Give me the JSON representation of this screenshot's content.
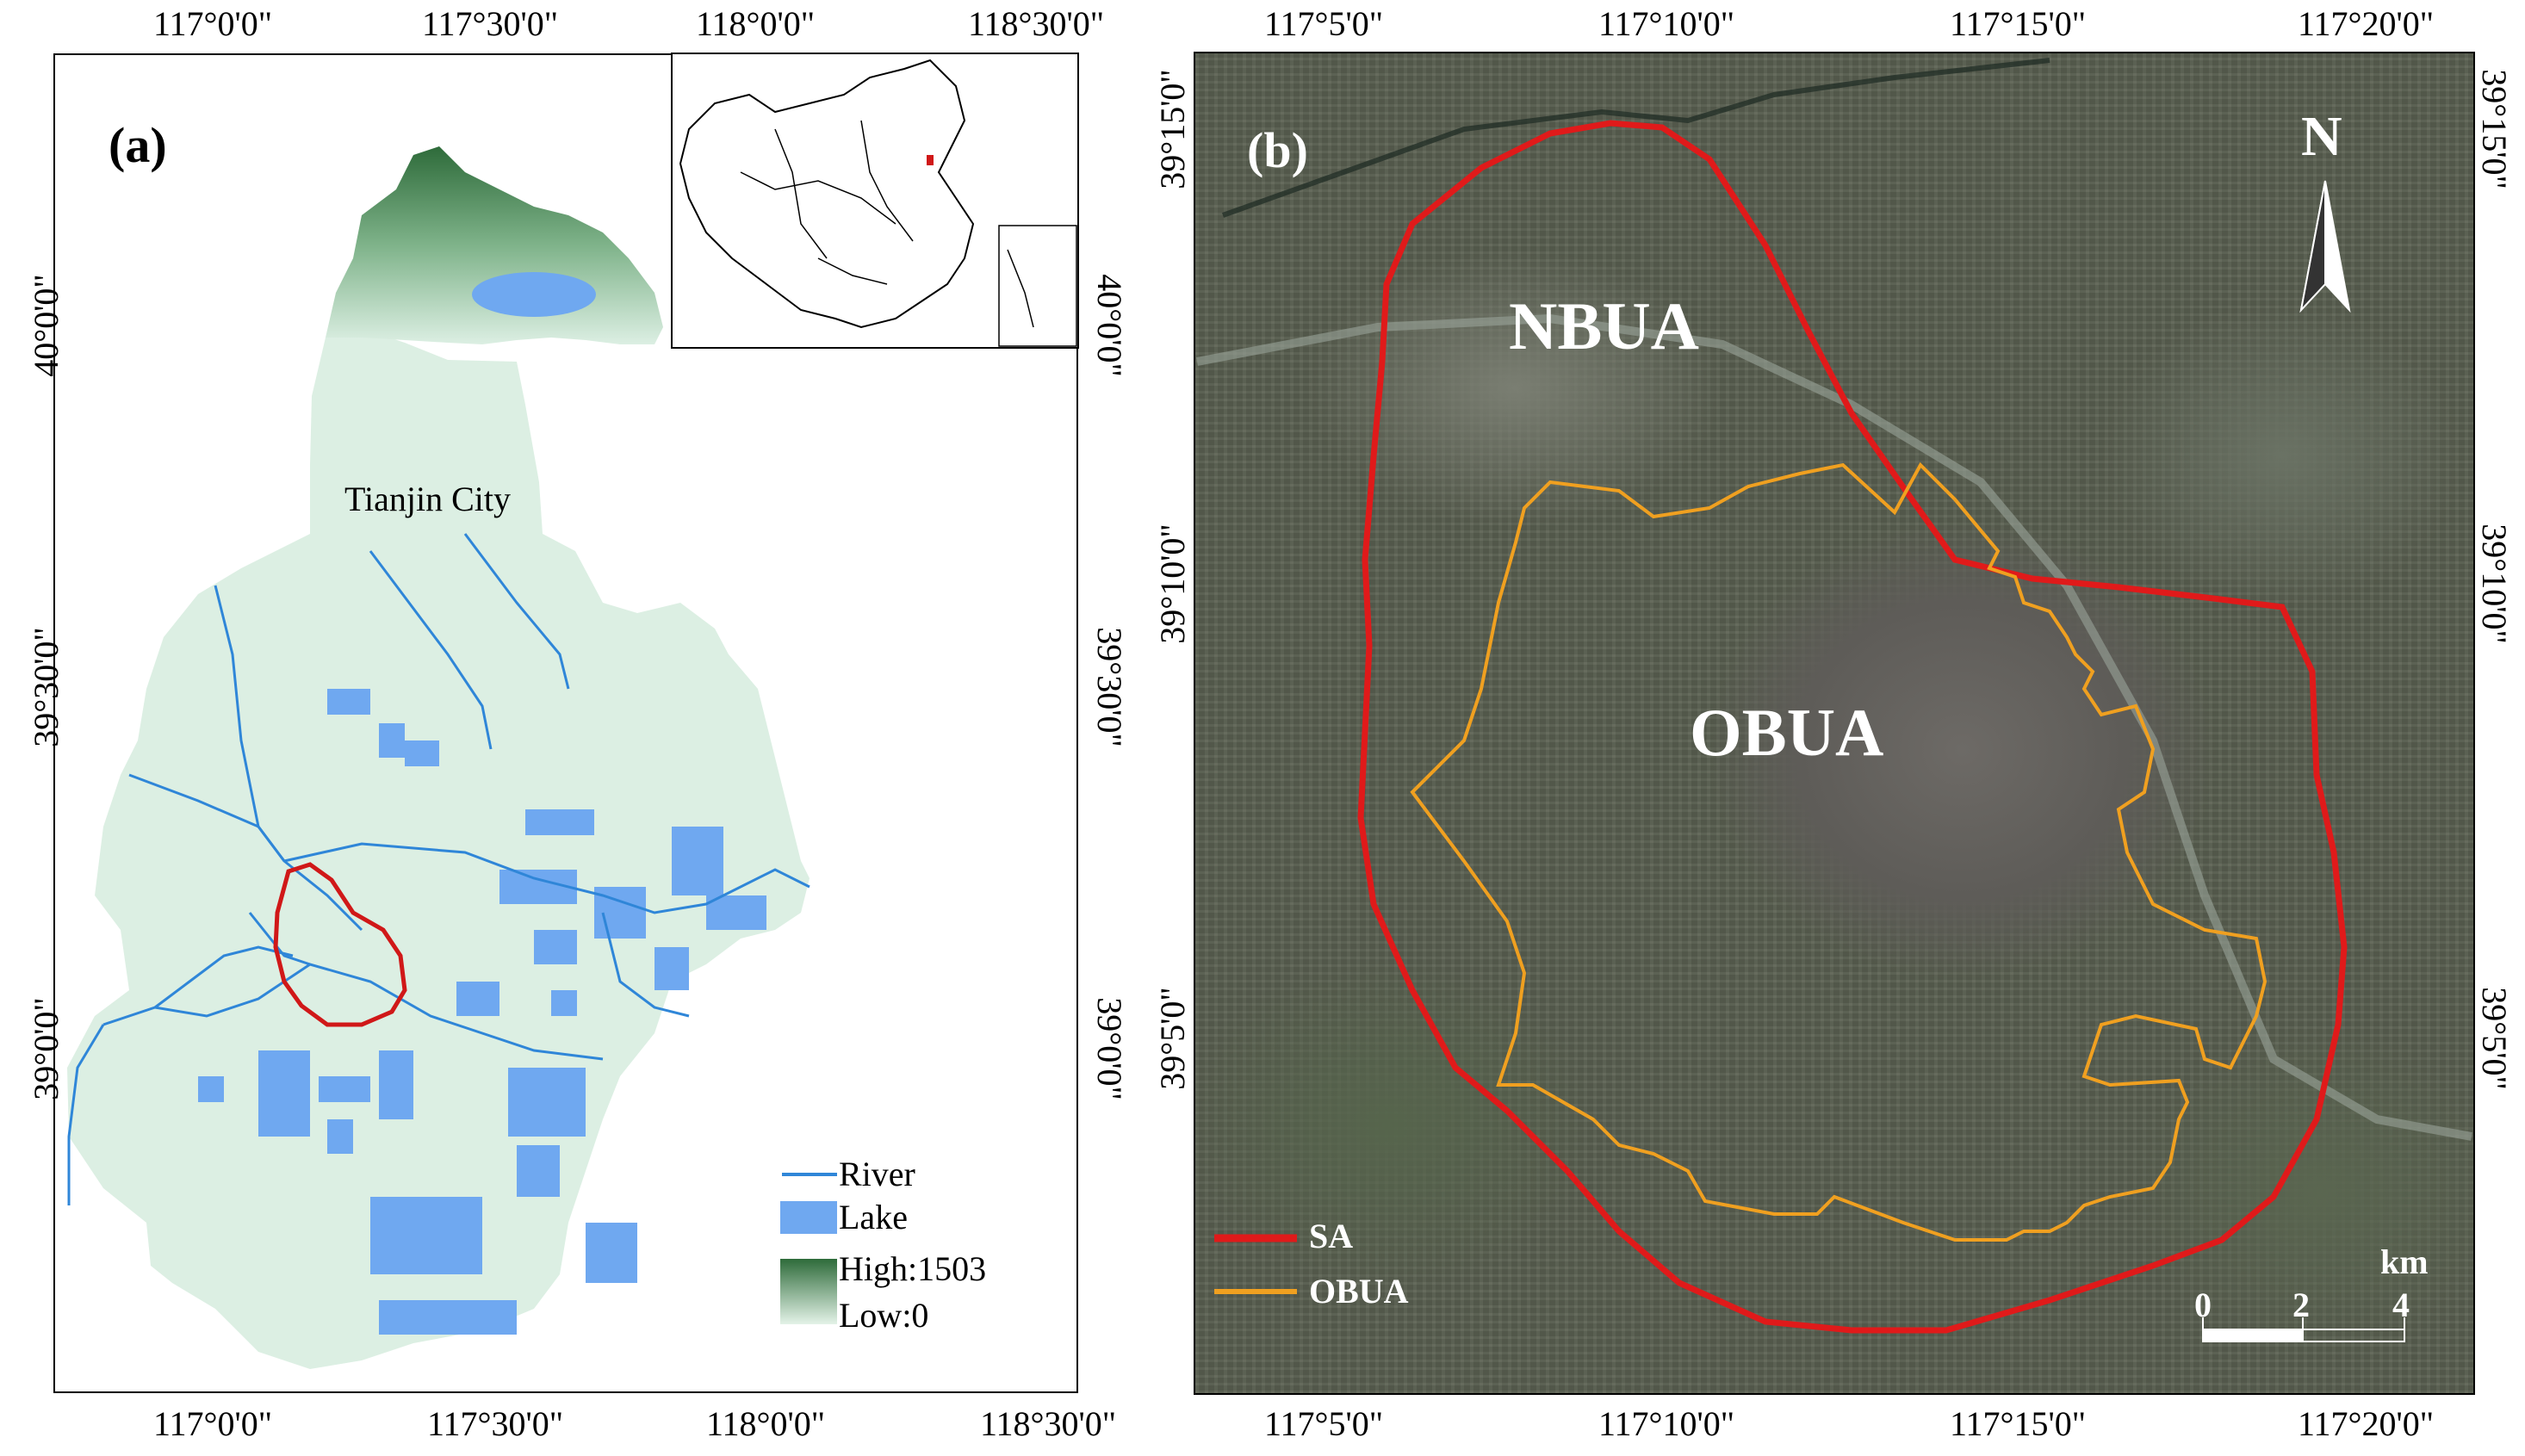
{
  "panel_a": {
    "label": "(a)",
    "top_ticks": [
      "117°0'0\"",
      "117°30'0\"",
      "118°0'0\"",
      "118°30'0\""
    ],
    "bottom_ticks": [
      "117°0'0\"",
      "117°30'0\"",
      "118°0'0\"",
      "118°30'0\""
    ],
    "left_ticks": [
      "40°0'0\"",
      "39°30'0\"",
      "39°0'0\""
    ],
    "right_ticks": [
      "40°0'0\"",
      "39°30'0\"",
      "39°0'0\""
    ],
    "place_label": "Tianjin City",
    "legend": {
      "river": "River",
      "lake": "Lake",
      "high": "High:1503",
      "low": "Low:0"
    },
    "colors": {
      "land": "#dcefe3",
      "water": "#6fa8f0",
      "river": "#2f86d8",
      "study_area": "#d01818",
      "elev_high": "#2e6b3a"
    }
  },
  "panel_b": {
    "label": "(b)",
    "top_ticks": [
      "117°5'0\"",
      "117°10'0\"",
      "117°15'0\"",
      "117°20'0\""
    ],
    "bottom_ticks": [
      "117°5'0\"",
      "117°10'0\"",
      "117°15'0\"",
      "117°20'0\""
    ],
    "left_ticks": [
      "39°15'0\"",
      "39°10'0\"",
      "39°5'0\""
    ],
    "right_ticks": [
      "39°15'0\"",
      "39°10'0\"",
      "39°5'0\""
    ],
    "zones": {
      "nbua": "NBUA",
      "obua": "OBUA"
    },
    "north_arrow": "N",
    "legend": {
      "sa": "SA",
      "obua": "OBUA"
    },
    "scale_bar": {
      "unit": "km",
      "labels": [
        "0",
        "2",
        "4"
      ]
    },
    "colors": {
      "sa": "#e01a1a",
      "obua": "#f0a020"
    }
  }
}
